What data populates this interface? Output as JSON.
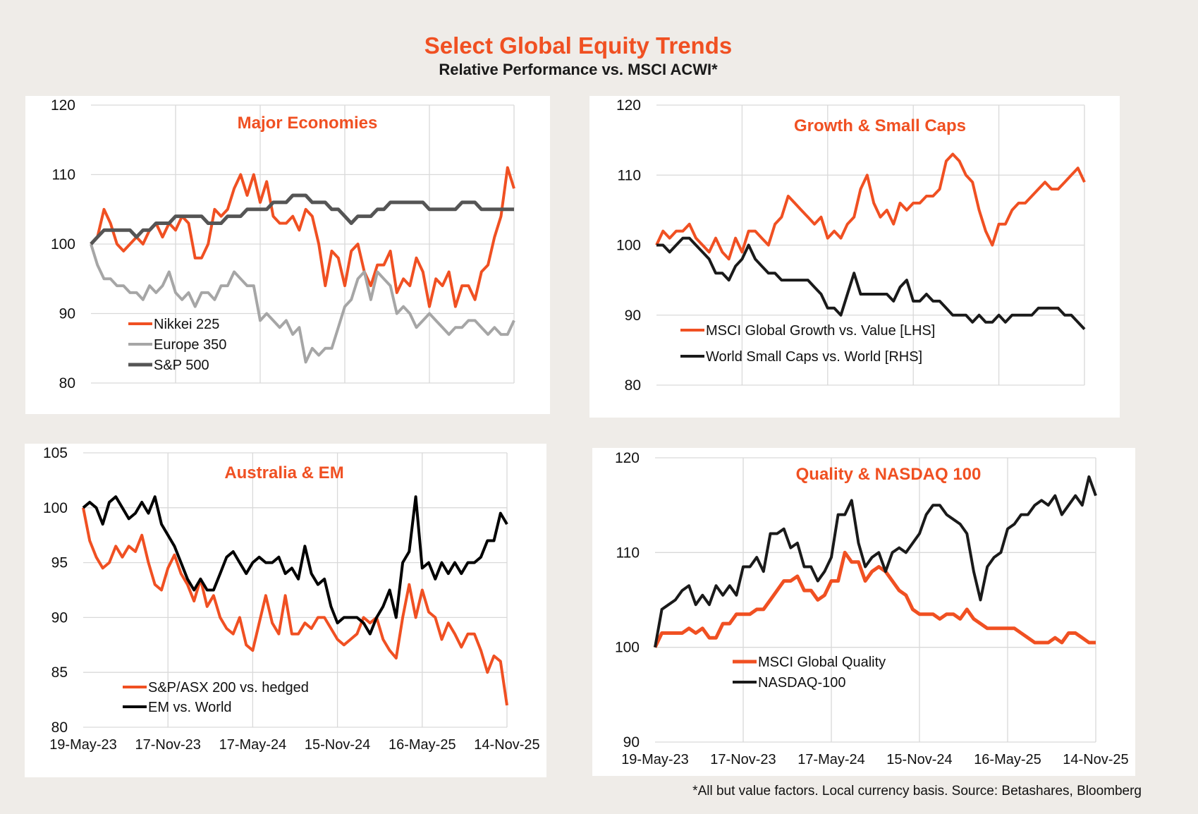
{
  "header": {
    "title": "Select Global Equity Trends",
    "subtitle": "Relative Performance vs. MSCI ACWI*"
  },
  "footer": "*All but value factors. Local currency basis.  Source: Betashares, Bloomberg",
  "colors": {
    "orange": "#f05022",
    "light_gray": "#a6a6a6",
    "dark_gray": "#555555",
    "black": "#1a1a1a",
    "grid": "#d9d9d9",
    "background": "#efece8"
  },
  "chart_data": [
    {
      "id": "major",
      "type": "line",
      "title": "Major Economies",
      "xlabel": "",
      "ylabel": "",
      "ylim": [
        80,
        120
      ],
      "yticks": [
        80,
        90,
        100,
        110,
        120
      ],
      "x_range": [
        "19-May-23",
        "14-Nov-25"
      ],
      "x_gridlines": 5,
      "x_tick_labels": [],
      "grid": true,
      "legend": "bottom-left",
      "series": [
        {
          "name": "Nikkei 225",
          "color": "#f05022",
          "width": 4,
          "values": [
            100,
            101,
            105,
            103,
            100,
            99,
            100,
            101,
            100,
            102,
            103,
            101,
            103,
            102,
            104,
            103,
            98,
            98,
            100,
            105,
            104,
            105,
            108,
            110,
            107,
            110,
            106,
            109,
            104,
            103,
            103,
            104,
            102,
            105,
            104,
            100,
            94,
            99,
            98,
            94,
            99,
            100,
            96,
            94,
            97,
            97,
            99,
            93,
            95,
            94,
            98,
            96,
            91,
            95,
            94,
            96,
            91,
            94,
            94,
            92,
            96,
            97,
            101,
            104,
            111,
            108
          ]
        },
        {
          "name": "Europe 350",
          "color": "#a6a6a6",
          "width": 4,
          "values": [
            100,
            97,
            95,
            95,
            94,
            94,
            93,
            93,
            92,
            94,
            93,
            94,
            96,
            93,
            92,
            93,
            91,
            93,
            93,
            92,
            94,
            94,
            96,
            95,
            94,
            94,
            89,
            90,
            89,
            88,
            89,
            87,
            88,
            83,
            85,
            84,
            85,
            85,
            88,
            91,
            92,
            95,
            96,
            92,
            96,
            95,
            94,
            90,
            91,
            90,
            88,
            89,
            90,
            89,
            88,
            87,
            88,
            88,
            89,
            89,
            88,
            87,
            88,
            87,
            87,
            89
          ]
        },
        {
          "name": "S&P 500",
          "color": "#555555",
          "width": 5,
          "values": [
            100,
            101,
            102,
            102,
            102,
            102,
            102,
            101,
            102,
            102,
            103,
            103,
            103,
            104,
            104,
            104,
            104,
            104,
            103,
            103,
            103,
            104,
            104,
            104,
            105,
            105,
            105,
            105,
            106,
            106,
            106,
            107,
            107,
            107,
            106,
            106,
            106,
            105,
            105,
            104,
            103,
            104,
            104,
            104,
            105,
            105,
            106,
            106,
            106,
            106,
            106,
            106,
            105,
            105,
            105,
            105,
            105,
            106,
            106,
            106,
            105,
            105,
            105,
            105,
            105,
            105
          ]
        }
      ]
    },
    {
      "id": "growth",
      "type": "line",
      "title": "Growth & Small Caps",
      "xlabel": "",
      "ylabel": "",
      "ylim": [
        80,
        120
      ],
      "yticks": [
        80,
        90,
        100,
        110,
        120
      ],
      "x_range": [
        "19-May-23",
        "14-Nov-25"
      ],
      "x_gridlines": 5,
      "x_tick_labels": [],
      "grid": true,
      "legend": "bottom-left",
      "series": [
        {
          "name": "MSCI Global Growth vs. Value [LHS]",
          "color": "#f05022",
          "width": 4,
          "values": [
            100,
            102,
            101,
            102,
            102,
            103,
            101,
            100,
            99,
            101,
            99,
            98,
            101,
            99,
            102,
            102,
            101,
            100,
            103,
            104,
            107,
            106,
            105,
            104,
            103,
            104,
            101,
            102,
            101,
            103,
            104,
            108,
            110,
            106,
            104,
            105,
            103,
            106,
            105,
            106,
            106,
            107,
            107,
            108,
            112,
            113,
            112,
            110,
            109,
            105,
            102,
            100,
            103,
            103,
            105,
            106,
            106,
            107,
            108,
            109,
            108,
            108,
            109,
            110,
            111,
            109
          ]
        },
        {
          "name": "World Small Caps vs. World [RHS]",
          "color": "#1a1a1a",
          "width": 4,
          "values": [
            100,
            100,
            99,
            100,
            101,
            101,
            100,
            99,
            98,
            96,
            96,
            95,
            97,
            98,
            100,
            98,
            97,
            96,
            96,
            95,
            95,
            95,
            95,
            95,
            94,
            93,
            91,
            91,
            90,
            93,
            96,
            93,
            93,
            93,
            93,
            93,
            92,
            94,
            95,
            92,
            92,
            93,
            92,
            92,
            91,
            90,
            90,
            90,
            89,
            90,
            89,
            89,
            90,
            89,
            90,
            90,
            90,
            90,
            91,
            91,
            91,
            91,
            90,
            90,
            89,
            88
          ]
        }
      ]
    },
    {
      "id": "ausem",
      "type": "line",
      "title": "Australia & EM",
      "xlabel": "",
      "ylabel": "",
      "ylim": [
        80,
        105
      ],
      "yticks": [
        80,
        85,
        90,
        95,
        100,
        105
      ],
      "x_tick_labels": [
        "19-May-23",
        "17-Nov-23",
        "17-May-24",
        "15-Nov-24",
        "16-May-25",
        "14-Nov-25"
      ],
      "grid": true,
      "legend": "bottom-left",
      "series": [
        {
          "name": "S&P/ASX 200 vs. hedged",
          "color": "#f05022",
          "width": 4,
          "values": [
            100,
            97,
            95.5,
            94.5,
            95,
            96.5,
            95.5,
            96.5,
            96,
            97.5,
            95,
            93,
            92.5,
            94.5,
            95.7,
            94,
            93,
            91.5,
            93.5,
            91,
            92,
            90,
            89,
            88.5,
            90,
            87.5,
            87,
            89.5,
            92,
            89.5,
            88.5,
            92,
            88.5,
            88.5,
            89.5,
            89,
            90,
            90,
            89,
            88,
            87.5,
            88,
            88.5,
            90,
            89.5,
            90,
            88,
            87,
            86.3,
            90,
            93,
            90,
            92.5,
            90.5,
            90,
            88,
            89.5,
            88.5,
            87.3,
            88.5,
            88.5,
            87,
            85,
            86.5,
            86,
            82
          ]
        },
        {
          "name": "EM vs. World",
          "color": "#000000",
          "width": 4,
          "values": [
            100,
            100.5,
            100,
            98.5,
            100.5,
            101,
            100,
            99,
            99.5,
            100.5,
            99.5,
            101,
            98.5,
            97.5,
            96.5,
            95,
            93.5,
            92.5,
            93.5,
            92.5,
            92.5,
            94,
            95.5,
            96,
            95,
            94,
            95,
            95.5,
            95,
            95,
            95.5,
            94,
            94.5,
            93.5,
            96.5,
            94,
            93,
            93.5,
            91,
            89.5,
            90,
            90,
            90,
            89.5,
            88.5,
            90,
            91,
            92.5,
            90,
            95,
            96,
            101,
            94.5,
            95,
            93.5,
            95,
            94,
            95,
            94,
            95,
            95,
            95.5,
            97,
            97,
            99.5,
            98.5
          ]
        }
      ]
    },
    {
      "id": "quality",
      "type": "line",
      "title": "Quality & NASDAQ 100",
      "xlabel": "",
      "ylabel": "",
      "ylim": [
        90,
        120
      ],
      "yticks": [
        90,
        100,
        110,
        120
      ],
      "x_tick_labels": [
        "19-May-23",
        "17-Nov-23",
        "17-May-24",
        "15-Nov-24",
        "16-May-25",
        "14-Nov-25"
      ],
      "grid": true,
      "legend": "bottom-left",
      "series": [
        {
          "name": "MSCI Global Quality",
          "color": "#f05022",
          "width": 5,
          "values": [
            100,
            101.5,
            101.5,
            101.5,
            101.5,
            102,
            101.5,
            102,
            101,
            101,
            102.5,
            102.5,
            103.5,
            103.5,
            103.5,
            104,
            104,
            105,
            106,
            107,
            107,
            107.5,
            106,
            106,
            105,
            105.5,
            107,
            107,
            110,
            109,
            109,
            107,
            108,
            108.5,
            108,
            107,
            106,
            105.5,
            104,
            103.5,
            103.5,
            103.5,
            103,
            103.5,
            103.5,
            103,
            104,
            103,
            102.5,
            102,
            102,
            102,
            102,
            102,
            101.5,
            101,
            100.5,
            100.5,
            100.5,
            101,
            100.5,
            101.5,
            101.5,
            101,
            100.5,
            100.5
          ]
        },
        {
          "name": "NASDAQ-100",
          "color": "#1a1a1a",
          "width": 4,
          "values": [
            100,
            104,
            104.5,
            105,
            106,
            106.5,
            104.5,
            105.5,
            104.5,
            106.5,
            105.5,
            106.5,
            105.5,
            108.5,
            108.5,
            109.5,
            108,
            112,
            112,
            112.5,
            110.5,
            111,
            108.5,
            108.5,
            107,
            108,
            109.5,
            114,
            114,
            115.5,
            111,
            108.5,
            109.5,
            110,
            108,
            110,
            110.5,
            110,
            111,
            112,
            114,
            115,
            115,
            114,
            113.5,
            113,
            112,
            108,
            105,
            108.5,
            109.5,
            110,
            112.5,
            113,
            114,
            114,
            115,
            115.5,
            115,
            116,
            114,
            115,
            116,
            115,
            118,
            116
          ]
        }
      ]
    }
  ]
}
